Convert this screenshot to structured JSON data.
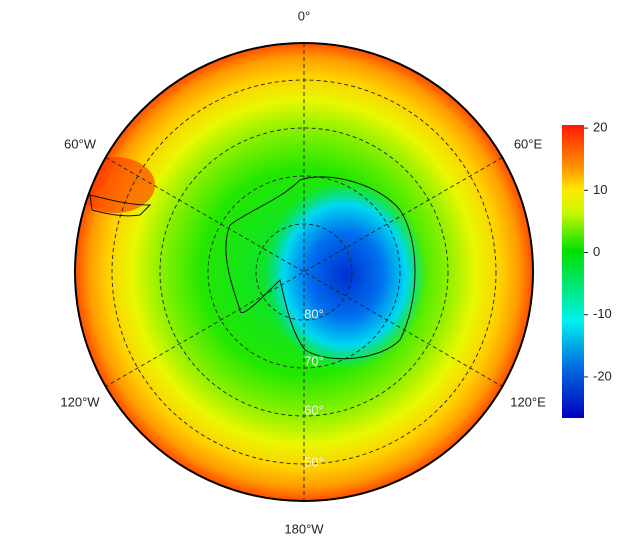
{
  "map": {
    "longitude_labels": [
      "0°",
      "60°E",
      "120°E",
      "180°W",
      "120°W",
      "60°W"
    ],
    "latitude_labels": [
      "80°",
      "70°",
      "60°",
      "50°"
    ],
    "colorbar": {
      "range": [
        -26.6,
        20.5
      ],
      "ticks": [
        20,
        10,
        0,
        -10,
        -20
      ]
    }
  }
}
